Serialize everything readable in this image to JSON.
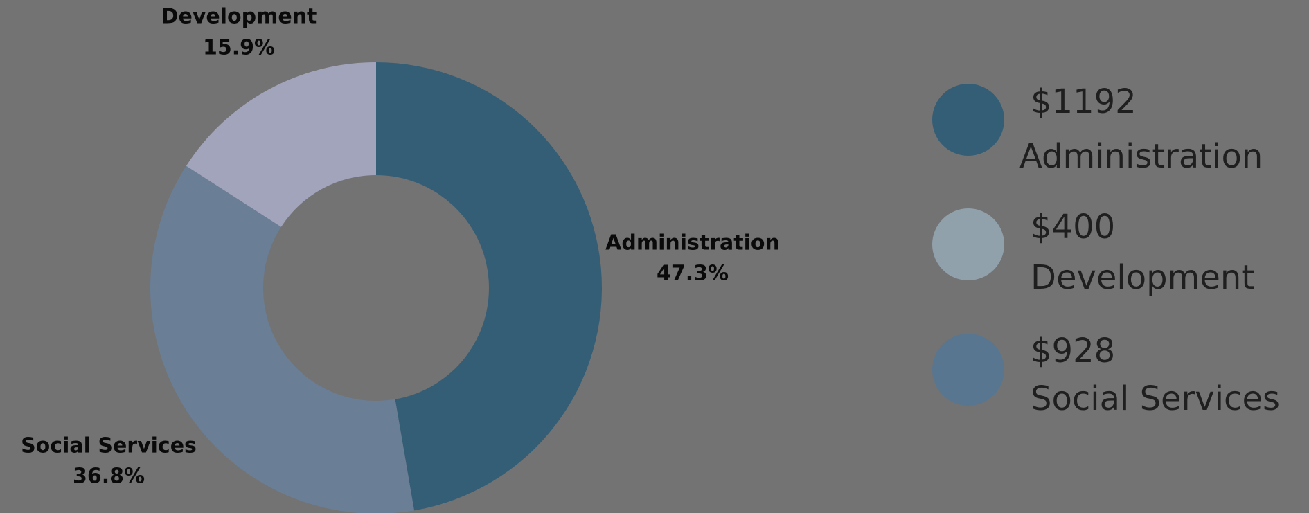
{
  "chart_data": {
    "type": "pie",
    "donut": true,
    "slices": [
      {
        "name": "Administration",
        "percent_label": "47.3%",
        "value": 47.3,
        "amount": "$1192",
        "color": "#345e76",
        "legend_color": "#345e76"
      },
      {
        "name": "Social Services",
        "percent_label": "36.8%",
        "value": 36.8,
        "amount": "$928",
        "color": "#6a7e96",
        "legend_color": "#587690"
      },
      {
        "name": "Development",
        "percent_label": "15.9%",
        "value": 15.9,
        "amount": "$400",
        "color": "#a2a4bc",
        "legend_color": "#91a1ac"
      }
    ],
    "legend_placement": "right"
  },
  "background_color": "#737373"
}
